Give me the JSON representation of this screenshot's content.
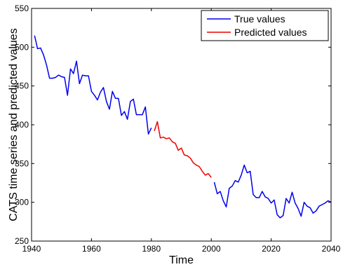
{
  "chart_data": {
    "type": "line",
    "title": "",
    "xlabel": "Time",
    "ylabel": "CATS time series and predicted values",
    "xlim": [
      1940,
      2040
    ],
    "ylim": [
      250,
      550
    ],
    "xticks": [
      1940,
      1960,
      1980,
      2000,
      2020,
      2040
    ],
    "yticks": [
      250,
      300,
      350,
      400,
      450,
      500,
      550
    ],
    "grid": false,
    "legend_position": "top-right",
    "series": [
      {
        "name": "True values",
        "color": "#0000ee",
        "segments": [
          {
            "x": [
              1941,
              1942,
              1943,
              1944,
              1945,
              1946,
              1947,
              1948,
              1949,
              1950,
              1951,
              1952,
              1953,
              1954,
              1955,
              1956,
              1957,
              1958,
              1959,
              1960,
              1961,
              1962,
              1963,
              1964,
              1965,
              1966,
              1967,
              1968,
              1969,
              1970,
              1971,
              1972,
              1973,
              1974,
              1975,
              1976,
              1977,
              1978,
              1979,
              1980
            ],
            "y": [
              515,
              498,
              499,
              490,
              477,
              460,
              460,
              461,
              464,
              462,
              461,
              438,
              472,
              466,
              482,
              453,
              464,
              463,
              463,
              443,
              438,
              432,
              442,
              448,
              430,
              420,
              443,
              434,
              434,
              412,
              417,
              407,
              430,
              433,
              413,
              413,
              413,
              423,
              388,
              396
            ]
          },
          {
            "x": [
              2001,
              2002,
              2003,
              2004,
              2005,
              2006,
              2007,
              2008,
              2009,
              2010,
              2011,
              2012,
              2013,
              2014,
              2015,
              2016,
              2017,
              2018,
              2019,
              2020,
              2021,
              2022,
              2023,
              2024,
              2025,
              2026,
              2027,
              2028,
              2029,
              2030,
              2031,
              2032,
              2033,
              2034,
              2035,
              2036,
              2037,
              2038,
              2039,
              2040
            ],
            "y": [
              326,
              311,
              314,
              302,
              294,
              318,
              321,
              328,
              326,
              335,
              348,
              338,
              340,
              310,
              306,
              306,
              314,
              307,
              305,
              299,
              303,
              284,
              280,
              283,
              305,
              299,
              313,
              299,
              292,
              282,
              300,
              295,
              293,
              286,
              289,
              295,
              297,
              299,
              302,
              300
            ]
          }
        ]
      },
      {
        "name": "Predicted values",
        "color": "#ee0000",
        "segments": [
          {
            "x": [
              1981,
              1982,
              1983,
              1984,
              1985,
              1986,
              1987,
              1988,
              1989,
              1990,
              1991,
              1992,
              1993,
              1994,
              1995,
              1996,
              1997,
              1998,
              1999,
              2000
            ],
            "y": [
              392,
              404,
              383,
              384,
              382,
              383,
              378,
              376,
              367,
              370,
              361,
              360,
              357,
              351,
              348,
              346,
              340,
              335,
              337,
              332
            ]
          }
        ]
      }
    ]
  }
}
